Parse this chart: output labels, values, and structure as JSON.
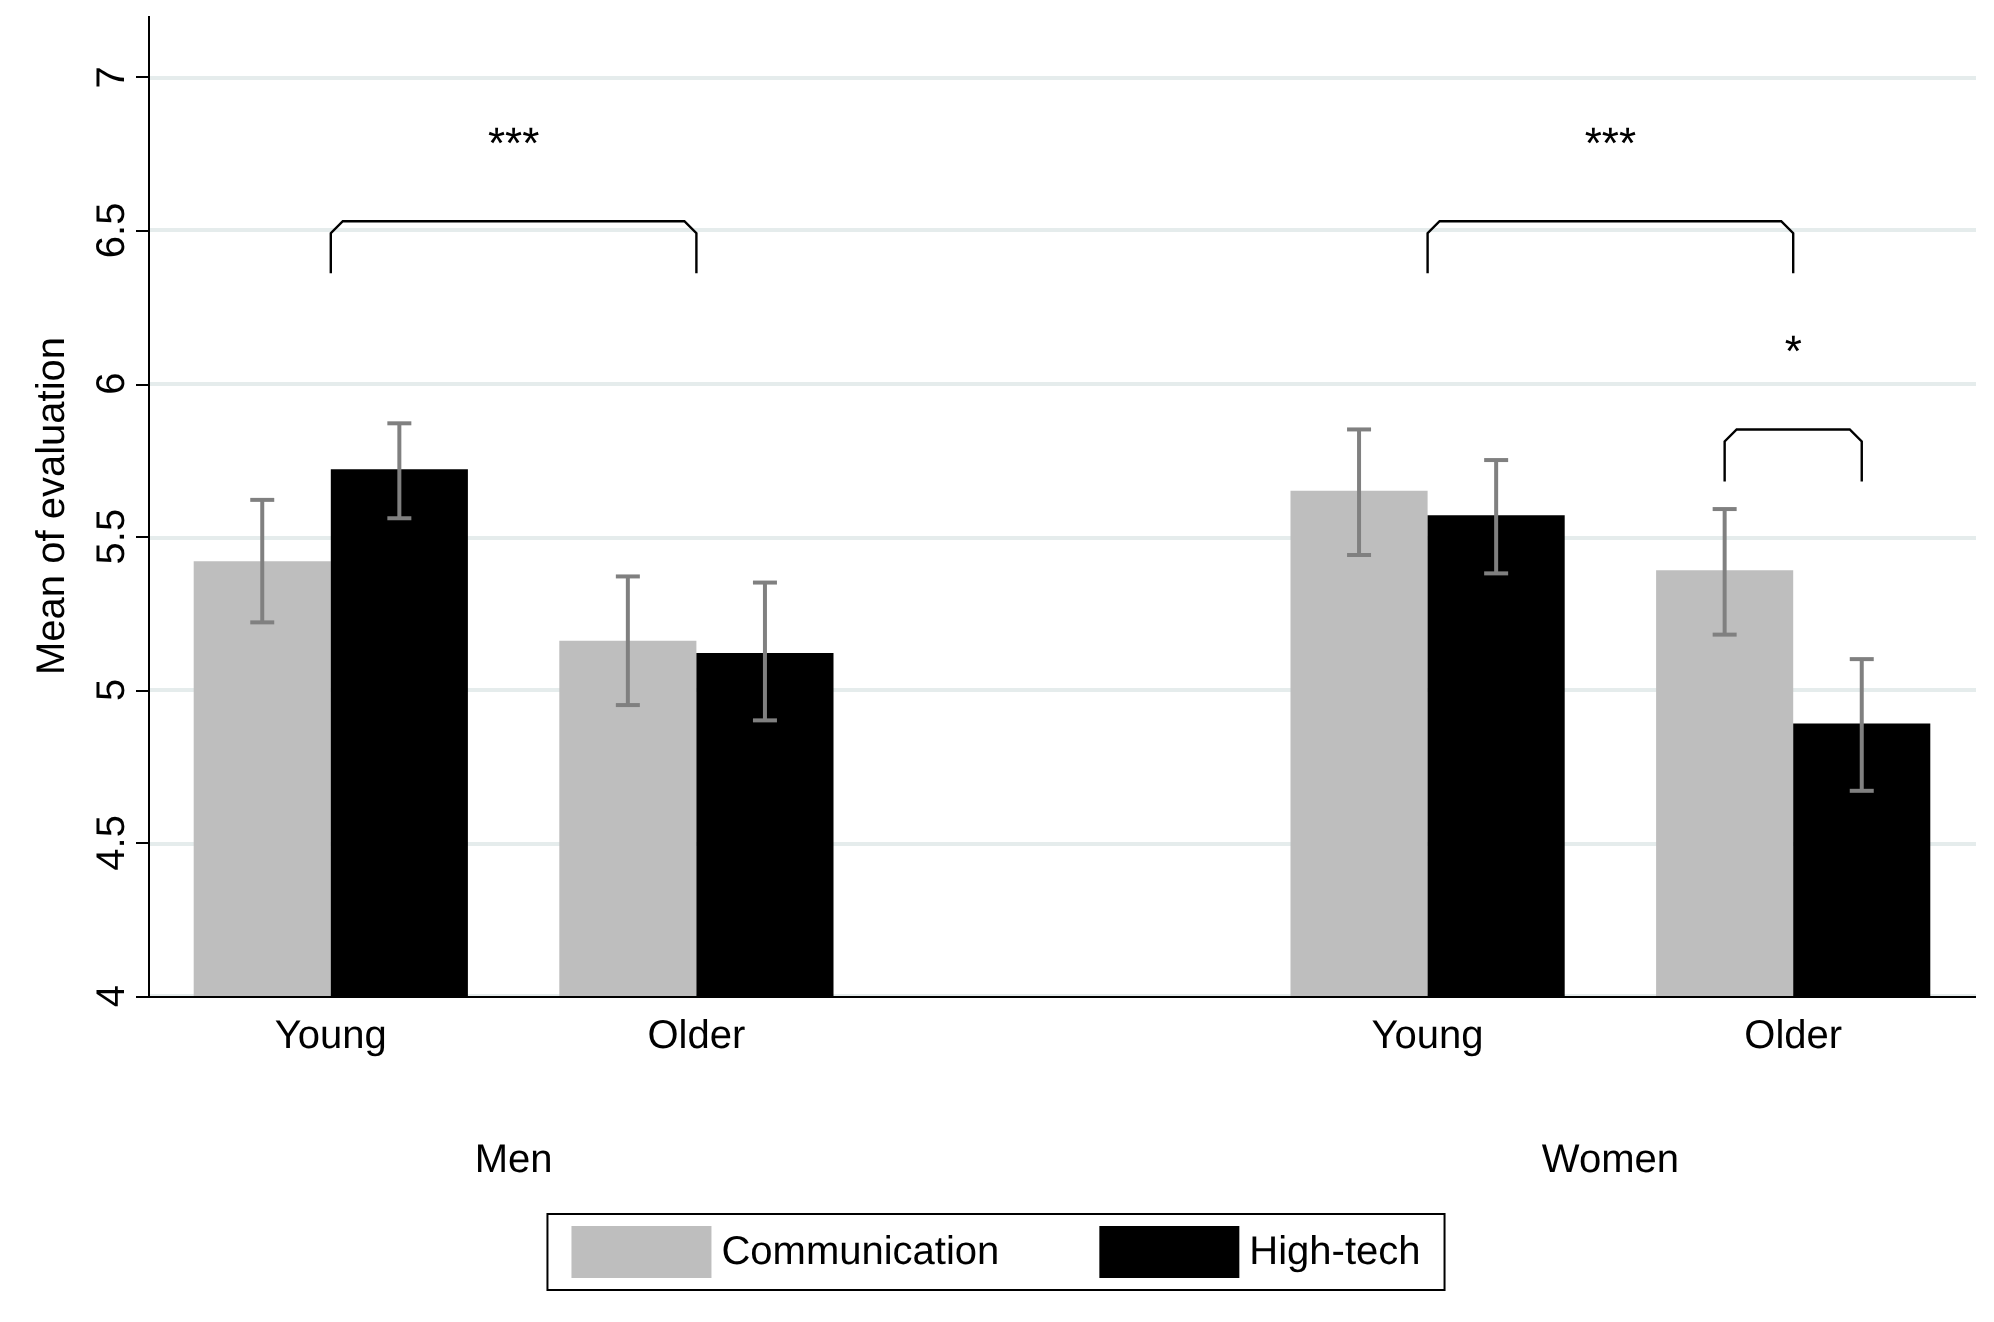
{
  "chart_data": {
    "type": "bar",
    "ylabel": "Mean of evaluation",
    "categories": [
      "Young",
      "Older",
      null,
      "Young",
      "Older"
    ],
    "series": [
      {
        "name": "Communication",
        "color": "#bebebe",
        "values": [
          5.42,
          5.16,
          null,
          5.65,
          5.39
        ],
        "errors": [
          [
            5.22,
            5.62
          ],
          [
            4.95,
            5.37
          ],
          null,
          [
            5.44,
            5.85
          ],
          [
            5.18,
            5.59
          ]
        ]
      },
      {
        "name": "High-tech",
        "color": "#000000",
        "values": [
          5.72,
          5.12,
          null,
          5.57,
          4.89
        ],
        "errors": [
          [
            5.56,
            5.87
          ],
          [
            4.9,
            5.35
          ],
          null,
          [
            5.38,
            5.75
          ],
          [
            4.67,
            5.1
          ]
        ]
      }
    ],
    "ylim": [
      4,
      7.2
    ],
    "yticks": [
      4,
      4.5,
      5,
      5.5,
      6,
      6.5,
      7
    ],
    "grid": "y",
    "legend": "bottom",
    "annotations": [
      "Men",
      "Women",
      "***",
      "***",
      "*"
    ]
  }
}
